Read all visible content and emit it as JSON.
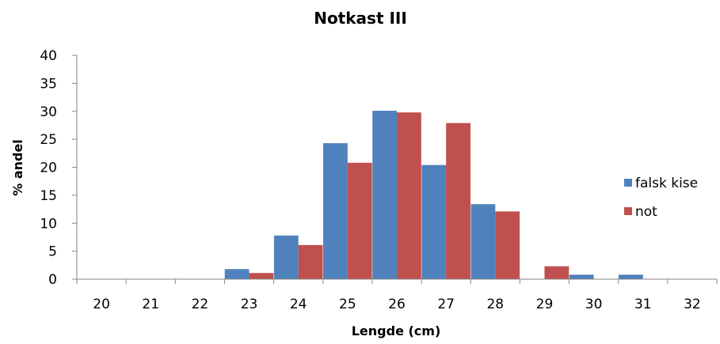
{
  "chart_data": {
    "type": "bar",
    "title": "Notkast III",
    "xlabel": "Lengde (cm)",
    "ylabel": "% andel",
    "categories": [
      "20",
      "21",
      "22",
      "23",
      "24",
      "25",
      "26",
      "27",
      "28",
      "29",
      "30",
      "31",
      "32"
    ],
    "series": [
      {
        "name": "falsk kise",
        "color": "#4f81bd",
        "values": [
          0,
          0,
          0,
          1.8,
          7.8,
          24.3,
          30.1,
          20.4,
          13.4,
          0,
          0.8,
          0.8,
          0
        ]
      },
      {
        "name": "not",
        "color": "#c0504d",
        "values": [
          0,
          0,
          0,
          1.1,
          6.1,
          20.8,
          29.8,
          27.9,
          12.1,
          2.3,
          0,
          0,
          0
        ]
      }
    ],
    "ylim": [
      0,
      40
    ],
    "yticks": [
      0,
      5,
      10,
      15,
      20,
      25,
      30,
      35,
      40
    ],
    "grid": false,
    "legend_position": "right"
  }
}
